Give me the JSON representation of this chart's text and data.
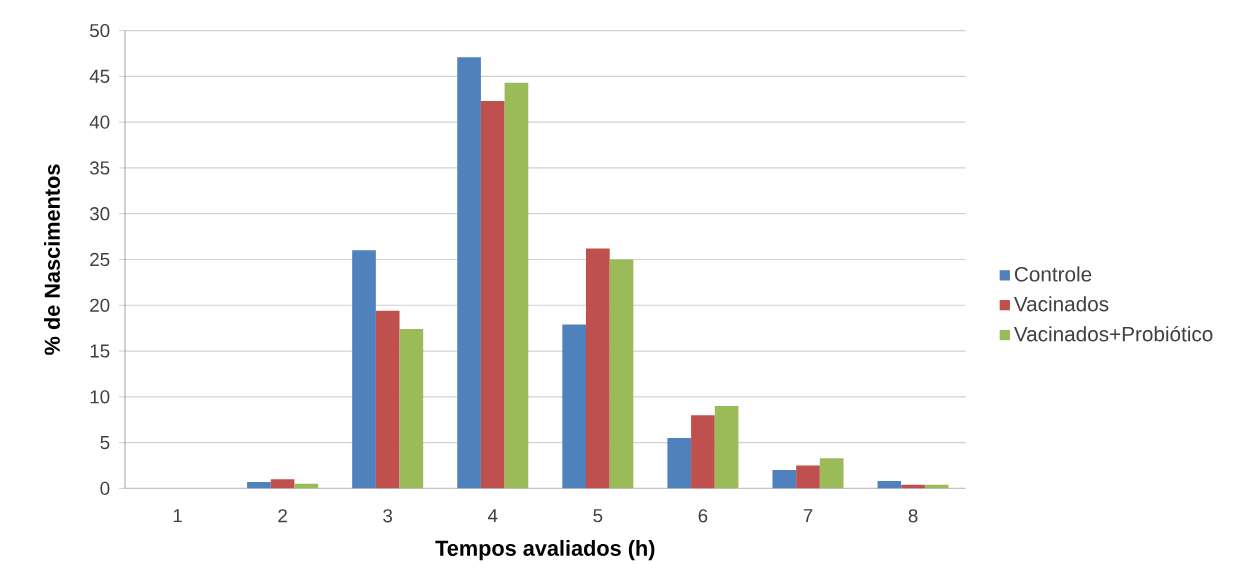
{
  "chart_data": {
    "type": "bar",
    "xlabel": "Tempos avaliados (h)",
    "ylabel": "% de Nascimentos",
    "categories": [
      "1",
      "2",
      "3",
      "4",
      "5",
      "6",
      "7",
      "8"
    ],
    "series": [
      {
        "name": "Controle",
        "color": "#4f81bd",
        "values": [
          0,
          0.7,
          26.0,
          47.1,
          17.9,
          5.5,
          2.0,
          0.8
        ]
      },
      {
        "name": "Vacinados",
        "color": "#c0504d",
        "values": [
          0,
          1.0,
          19.4,
          42.3,
          26.2,
          8.0,
          2.5,
          0.4
        ]
      },
      {
        "name": "Vacinados+Probiótico",
        "color": "#9bbb59",
        "values": [
          0,
          0.5,
          17.4,
          44.3,
          25.0,
          9.0,
          3.3,
          0.4
        ]
      }
    ],
    "ylim": [
      0,
      50
    ],
    "yticks": [
      0,
      5,
      10,
      15,
      20,
      25,
      30,
      35,
      40,
      45,
      50
    ],
    "grid": "y",
    "legend": "right"
  }
}
